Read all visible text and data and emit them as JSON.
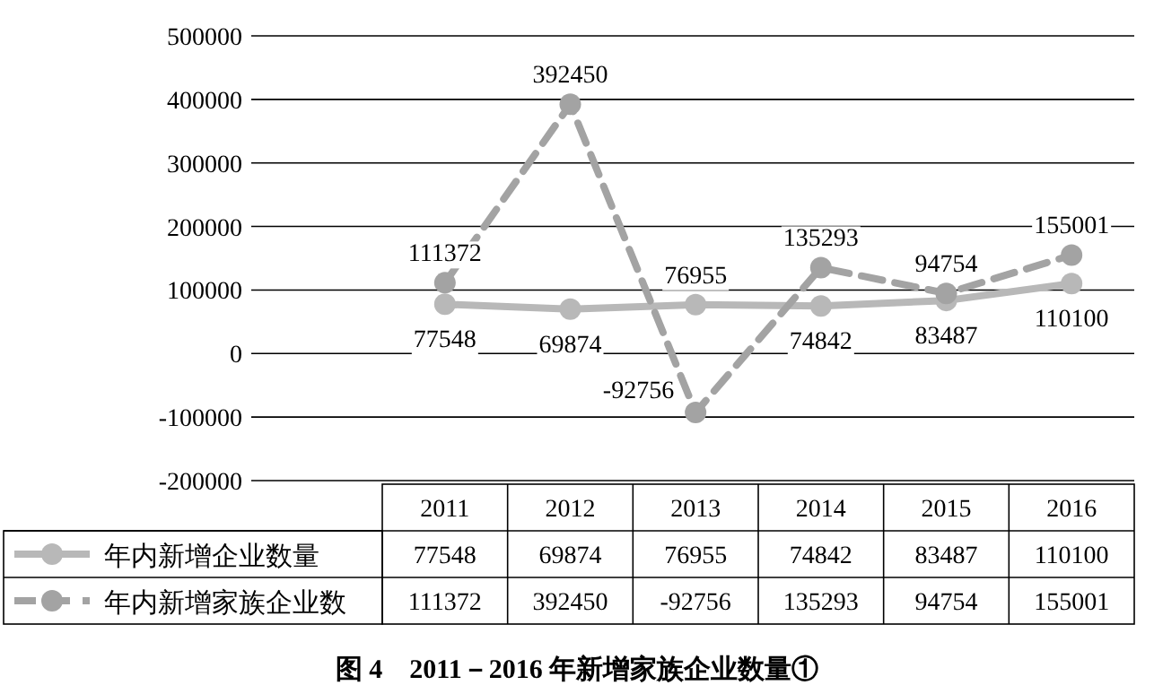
{
  "chart_data": {
    "type": "line",
    "title": "图 4　2011－2016 年新增家族企业数量①",
    "categories": [
      "2011",
      "2012",
      "2013",
      "2014",
      "2015",
      "2016"
    ],
    "series": [
      {
        "name": "年内新增企业数量",
        "color": "#b8b8b8",
        "line_style": "solid",
        "values": [
          77548,
          69874,
          76955,
          74842,
          83487,
          110100
        ],
        "value_labels": [
          "77548",
          "69874",
          "76955",
          "74842",
          "83487",
          "110100"
        ]
      },
      {
        "name": "年内新增家族企业数",
        "color": "#a3a3a3",
        "line_style": "dashed",
        "values": [
          111372,
          392450,
          -92756,
          135293,
          94754,
          155001
        ],
        "value_labels": [
          "111372",
          "392450",
          "-92756",
          "135293",
          "94754",
          "155001"
        ]
      }
    ],
    "ylim": [
      -200000,
      500000
    ],
    "yticks": [
      -200000,
      -100000,
      0,
      100000,
      200000,
      300000,
      400000,
      500000
    ],
    "annotations": [
      "77548",
      "69874",
      "76955",
      "74842",
      "83487",
      "110100",
      "111372",
      "392450",
      "-92756",
      "135293",
      "94754",
      "155001"
    ],
    "grid": "y",
    "marker": "circle",
    "legend": "bottom"
  }
}
